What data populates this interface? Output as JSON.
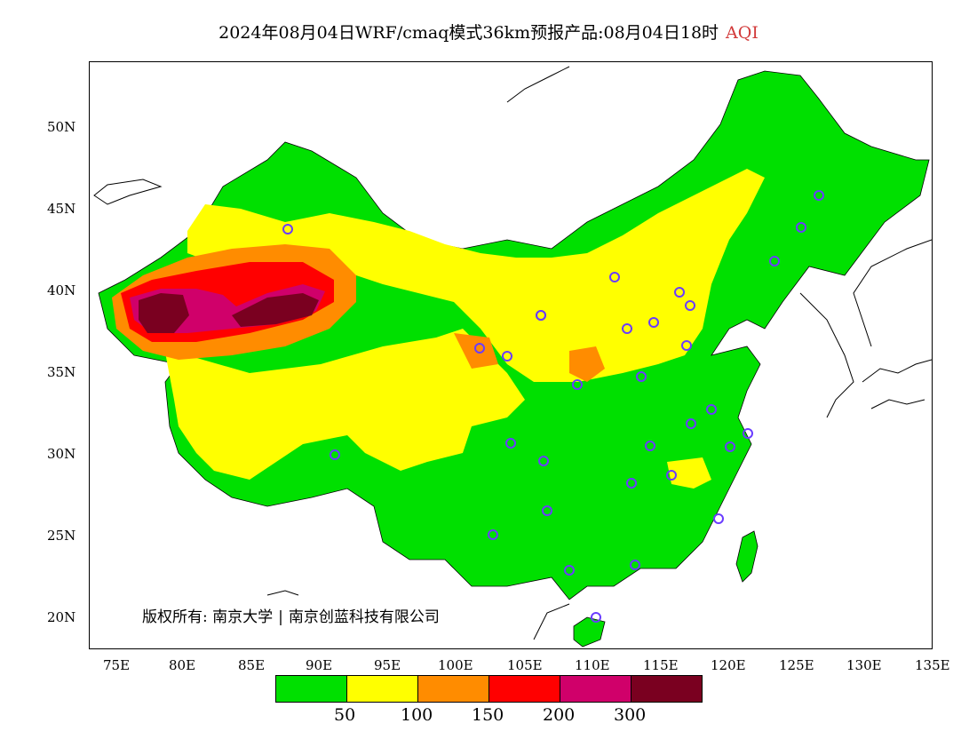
{
  "title": {
    "main": "2024年08月04日WRF/cmaq模式36km预报产品:08月04日18时",
    "variable": "AQI"
  },
  "axes": {
    "lon_labels": [
      "75E",
      "80E",
      "85E",
      "90E",
      "95E",
      "100E",
      "105E",
      "110E",
      "115E",
      "120E",
      "125E",
      "130E",
      "135E"
    ],
    "lat_labels": [
      "50N",
      "45N",
      "40N",
      "35N",
      "30N",
      "25N",
      "20N"
    ]
  },
  "copyright": {
    "owner_label": "版权所有:",
    "org1": "南京大学",
    "org2": "南京创蓝科技有限公司"
  },
  "legend": {
    "colors": [
      "#00e000",
      "#ffff00",
      "#ff8c00",
      "#ff0000",
      "#d0006a",
      "#7a0020"
    ],
    "labels": [
      "50",
      "100",
      "150",
      "200",
      "300"
    ]
  }
}
